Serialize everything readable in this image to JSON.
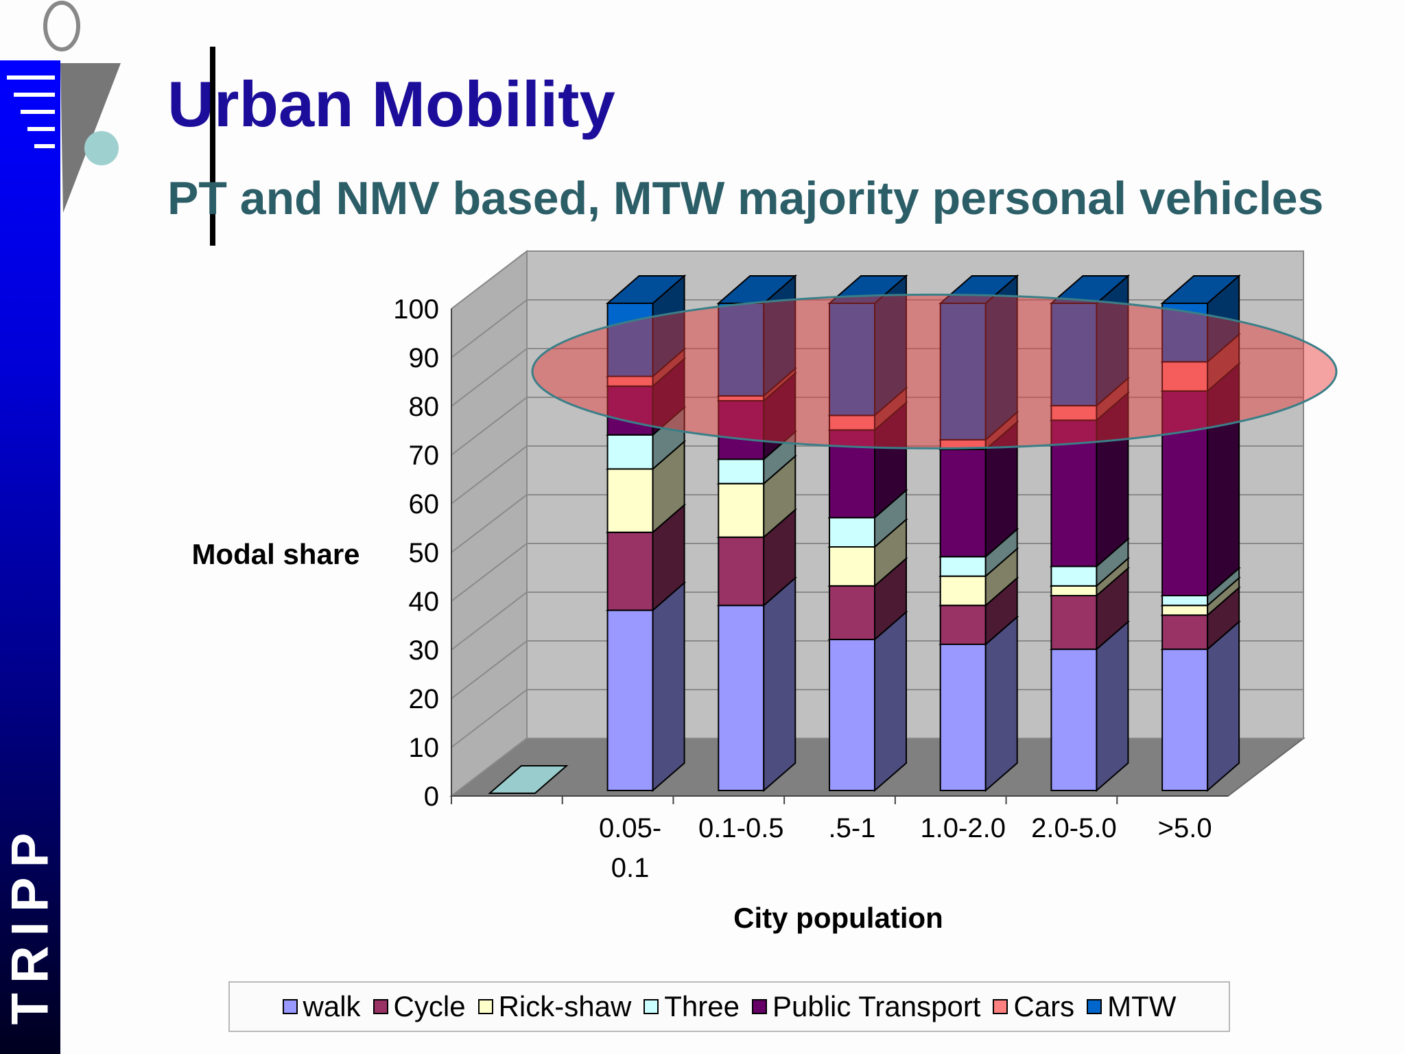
{
  "slide": {
    "title": "Urban Mobility",
    "subtitle": "PT and NMV based, MTW majority personal  vehicles",
    "sidebar_text": "TRIPP",
    "logo_icon": "tripp-logo-icon"
  },
  "colors": {
    "title": "#1c0d9a",
    "subtitle": "#2c5e68",
    "sidebar": "#0000ff",
    "wall": "#c0c0c0",
    "floor": "#808080",
    "highlight": "#e83232"
  },
  "chart_data": {
    "type": "bar",
    "stacked": true,
    "three_d": true,
    "xlabel": "City population",
    "ylabel": "Modal share",
    "ylim": [
      0,
      100
    ],
    "yticks": [
      0,
      10,
      20,
      30,
      40,
      50,
      60,
      70,
      80,
      90,
      100
    ],
    "grid": true,
    "legend_position": "bottom",
    "categories": [
      "",
      "0.05-0.1",
      "0.1-0.5",
      ".5-1",
      "1.0-2.0",
      "2.0-5.0",
      ">5.0"
    ],
    "category_lines": [
      [
        "",
        ""
      ],
      [
        "0.05-",
        "0.1"
      ],
      [
        "0.1-0.5",
        ""
      ],
      [
        ".5-1",
        ""
      ],
      [
        "1.0-2.0",
        ""
      ],
      [
        "2.0-5.0",
        ""
      ],
      [
        ">5.0",
        ""
      ]
    ],
    "series": [
      {
        "name": "walk",
        "color": "#9999ff",
        "values": [
          0,
          37,
          38,
          31,
          30,
          29,
          29
        ]
      },
      {
        "name": "Cycle",
        "color": "#993366",
        "values": [
          0,
          16,
          14,
          11,
          8,
          11,
          7
        ]
      },
      {
        "name": "Rick-shaw",
        "color": "#ffffcc",
        "values": [
          0,
          13,
          11,
          8,
          6,
          2,
          2
        ]
      },
      {
        "name": "Three",
        "color": "#ccffff",
        "values": [
          0,
          7,
          5,
          6,
          4,
          4,
          2
        ]
      },
      {
        "name": "Public Transport",
        "color": "#660066",
        "values": [
          0,
          10,
          12,
          18,
          22,
          30,
          42
        ]
      },
      {
        "name": "Cars",
        "color": "#ff8080",
        "values": [
          0,
          2,
          1,
          3,
          2,
          3,
          6
        ]
      },
      {
        "name": "MTW",
        "color": "#0066cc",
        "values": [
          0,
          15,
          19,
          23,
          28,
          21,
          12
        ]
      }
    ],
    "annotations": [
      {
        "type": "ellipse",
        "description": "highlight",
        "y_center": 86
      }
    ]
  }
}
